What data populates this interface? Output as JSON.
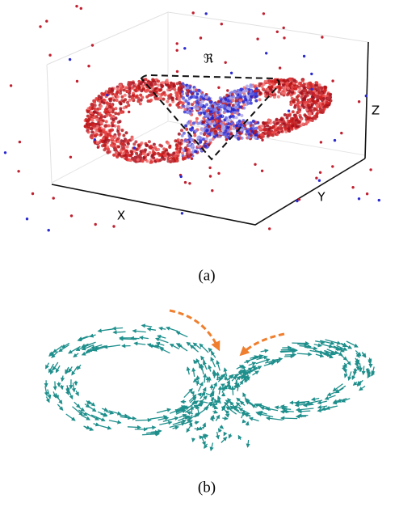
{
  "panel_a": {
    "region_label": "ℜ",
    "axis_labels": {
      "x": "X",
      "y": "Y",
      "z": "Z"
    },
    "caption": "(a)"
  },
  "panel_b": {
    "caption": "(b)"
  }
}
